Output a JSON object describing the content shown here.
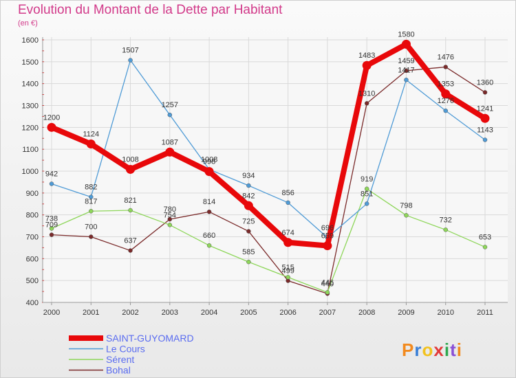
{
  "chart_data": {
    "type": "line",
    "title": "Evolution du Montant de la Dette par Habitant",
    "subtitle": "(en €)",
    "xlabel": "",
    "ylabel": "",
    "ylim": [
      400,
      1600
    ],
    "yticks": [
      400,
      500,
      600,
      700,
      800,
      900,
      1000,
      1100,
      1200,
      1300,
      1400,
      1500,
      1600
    ],
    "categories": [
      "2000",
      "2001",
      "2002",
      "2003",
      "2004",
      "2005",
      "2006",
      "2007",
      "2008",
      "2009",
      "2010",
      "2011"
    ],
    "grid": true,
    "legend_position": "bottom-left",
    "series": [
      {
        "name": "SAINT-GUYOMARD",
        "color": "#e8080a",
        "values": [
          1200,
          1124,
          1008,
          1087,
          998,
          842,
          674,
          659,
          1483,
          1580,
          1353,
          1241
        ]
      },
      {
        "name": "Le Cours",
        "color": "#4f9bd6",
        "values": [
          942,
          882,
          1507,
          1257,
          1008,
          934,
          856,
          696,
          851,
          1417,
          1276,
          1143
        ]
      },
      {
        "name": "Sérent",
        "color": "#8ed65a",
        "values": [
          738,
          817,
          821,
          754,
          660,
          585,
          515,
          446,
          919,
          798,
          732,
          653
        ]
      },
      {
        "name": "Bohal",
        "color": "#7a2a2a",
        "values": [
          709,
          700,
          637,
          780,
          814,
          725,
          499,
          440,
          1310,
          1459,
          1476,
          1360
        ]
      }
    ]
  },
  "brand": {
    "logo_text": "Proxiti",
    "colors": [
      "#f28a1e",
      "#3a7fd6",
      "#f2c21e",
      "#e23a3a",
      "#2fa84f",
      "#8a4fd6",
      "#f28a1e"
    ]
  }
}
